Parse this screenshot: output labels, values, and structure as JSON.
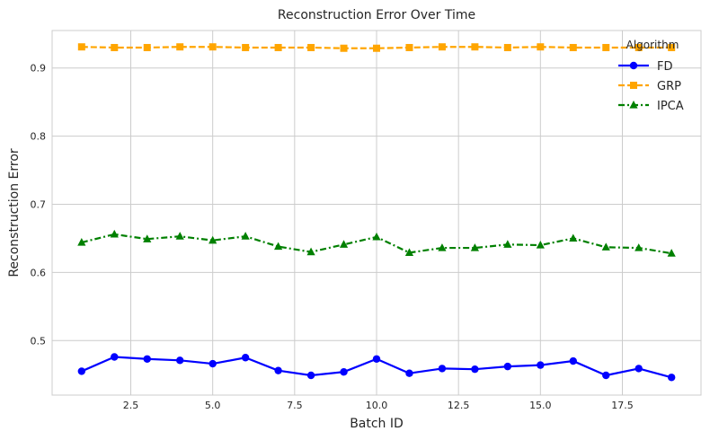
{
  "chart_data": {
    "type": "line",
    "title": "Reconstruction Error Over Time",
    "xlabel": "Batch ID",
    "ylabel": "Reconstruction Error",
    "xlim": [
      0.1,
      19.9
    ],
    "ylim": [
      0.42,
      0.955
    ],
    "xticks": [
      2.5,
      5.0,
      7.5,
      10.0,
      12.5,
      15.0,
      17.5
    ],
    "xtick_labels": [
      "2.5",
      "5.0",
      "7.5",
      "10.0",
      "12.5",
      "15.0",
      "17.5"
    ],
    "yticks": [
      0.5,
      0.6,
      0.7,
      0.8,
      0.9
    ],
    "ytick_labels": [
      "0.5",
      "0.6",
      "0.7",
      "0.8",
      "0.9"
    ],
    "grid": true,
    "legend": {
      "title": "Algorithm",
      "placement": "top-right"
    },
    "x": [
      1,
      2,
      3,
      4,
      5,
      6,
      7,
      8,
      9,
      10,
      11,
      12,
      13,
      14,
      15,
      16,
      17,
      18,
      19
    ],
    "series": [
      {
        "name": "FD",
        "color": "#0000ff",
        "linestyle": "solid",
        "marker": "circle",
        "values": [
          0.455,
          0.476,
          0.473,
          0.471,
          0.466,
          0.475,
          0.456,
          0.449,
          0.454,
          0.473,
          0.452,
          0.459,
          0.458,
          0.462,
          0.464,
          0.47,
          0.449,
          0.459,
          0.446
        ]
      },
      {
        "name": "GRP",
        "color": "#ffa500",
        "linestyle": "dashed",
        "marker": "square",
        "values": [
          0.931,
          0.93,
          0.93,
          0.931,
          0.931,
          0.93,
          0.93,
          0.93,
          0.929,
          0.929,
          0.93,
          0.931,
          0.931,
          0.93,
          0.931,
          0.93,
          0.93,
          0.93,
          0.93
        ]
      },
      {
        "name": "IPCA",
        "color": "#008000",
        "linestyle": "dashdot",
        "marker": "triangle",
        "values": [
          0.644,
          0.656,
          0.649,
          0.653,
          0.647,
          0.653,
          0.638,
          0.63,
          0.641,
          0.652,
          0.629,
          0.636,
          0.636,
          0.641,
          0.64,
          0.65,
          0.637,
          0.636,
          0.628
        ]
      }
    ]
  }
}
